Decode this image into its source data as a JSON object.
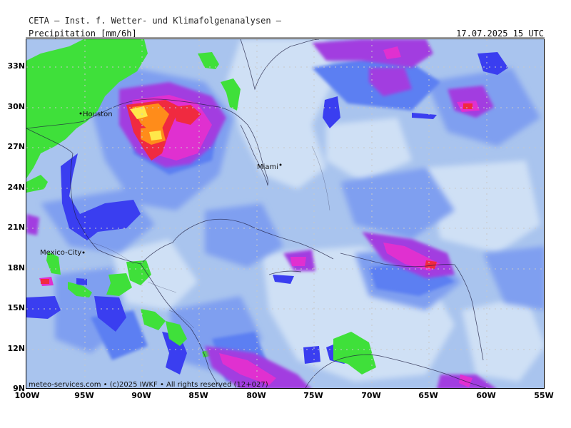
{
  "header": {
    "institute": "CETA – Inst. f. Wetter- und Klimafolgenanalysen –",
    "product": "Precipitation [mm/6h]",
    "valid_time": "17.07.2025 15 UTC"
  },
  "axes": {
    "lat_labels": [
      "33N",
      "30N",
      "27N",
      "24N",
      "21N",
      "18N",
      "15N",
      "12N",
      "9N"
    ],
    "lon_labels": [
      "100W",
      "95W",
      "90W",
      "85W",
      "80W",
      "75W",
      "70W",
      "65W",
      "60W",
      "55W"
    ]
  },
  "cities": {
    "houston": "Houston",
    "miami": "Miami",
    "mexico_city": "Mexico-City"
  },
  "footer": "meteo-services.com • (c)2025 IWKF • All rights reserved (12+027)",
  "colors": {
    "light": "#cfe0f5",
    "pale": "#a9c4ee",
    "mid": "#7f9ff0",
    "deep": "#5b7ff2",
    "blue": "#3a3ef0",
    "green": "#3fe03a",
    "violet": "#a23ee0",
    "magenta": "#e030d0",
    "red": "#f02a40",
    "orange": "#ff8c1a",
    "yellow": "#ffe84a"
  }
}
